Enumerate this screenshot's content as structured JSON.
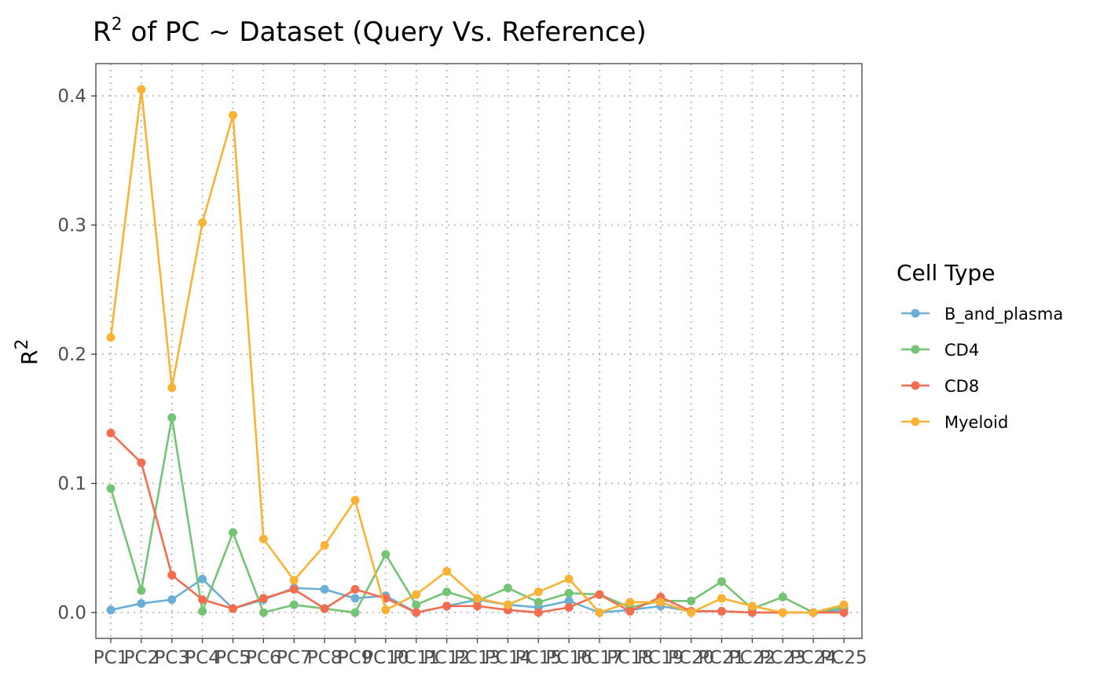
{
  "chart_data": {
    "type": "line",
    "title": "R",
    "title_superscript": "2",
    "title_rest": " of PC ~  Dataset (Query Vs. Reference)",
    "xlabel": "",
    "ylabel": "R",
    "ylabel_superscript": "2",
    "x": [
      "PC1",
      "PC2",
      "PC3",
      "PC4",
      "PC5",
      "PC6",
      "PC7",
      "PC8",
      "PC9",
      "PC10",
      "PC11",
      "PC12",
      "PC13",
      "PC14",
      "PC15",
      "PC16",
      "PC17",
      "PC18",
      "PC19",
      "PC20",
      "PC21",
      "PC22",
      "PC23",
      "PC24",
      "PC25"
    ],
    "yticks": [
      "0.0",
      "0.1",
      "0.2",
      "0.3",
      "0.4"
    ],
    "ylim": [
      -0.02,
      0.425
    ],
    "grid": true,
    "legend_title": "Cell Type",
    "legend_position": "right",
    "series": [
      {
        "name": "B_and_plasma",
        "color": "#6baed6",
        "values": [
          0.002,
          0.007,
          0.01,
          0.026,
          0.003,
          0.01,
          0.019,
          0.018,
          0.011,
          0.013,
          0.0,
          0.005,
          0.01,
          0.006,
          0.004,
          0.009,
          0.0,
          0.002,
          0.005,
          0.001,
          0.001,
          0.0,
          0.0,
          0.0,
          0.002
        ]
      },
      {
        "name": "CD4",
        "color": "#74c476",
        "values": [
          0.096,
          0.017,
          0.151,
          0.001,
          0.062,
          0.0,
          0.006,
          0.003,
          0.0,
          0.045,
          0.006,
          0.016,
          0.009,
          0.019,
          0.008,
          0.015,
          0.014,
          0.004,
          0.009,
          0.009,
          0.024,
          0.003,
          0.012,
          0.0,
          0.004
        ]
      },
      {
        "name": "CD8",
        "color": "#f46d4e",
        "values": [
          0.139,
          0.116,
          0.029,
          0.01,
          0.003,
          0.011,
          0.018,
          0.003,
          0.018,
          0.011,
          0.0,
          0.005,
          0.005,
          0.002,
          0.0,
          0.004,
          0.014,
          0.001,
          0.012,
          0.001,
          0.001,
          0.0,
          0.0,
          0.0,
          0.0
        ]
      },
      {
        "name": "Myeloid",
        "color": "#f9b233",
        "values": [
          0.213,
          0.405,
          0.174,
          0.302,
          0.385,
          0.057,
          0.025,
          0.052,
          0.087,
          0.002,
          0.014,
          0.032,
          0.011,
          0.006,
          0.016,
          0.026,
          0.0,
          0.008,
          0.008,
          0.0,
          0.011,
          0.005,
          0.0,
          0.0,
          0.006
        ]
      }
    ]
  }
}
